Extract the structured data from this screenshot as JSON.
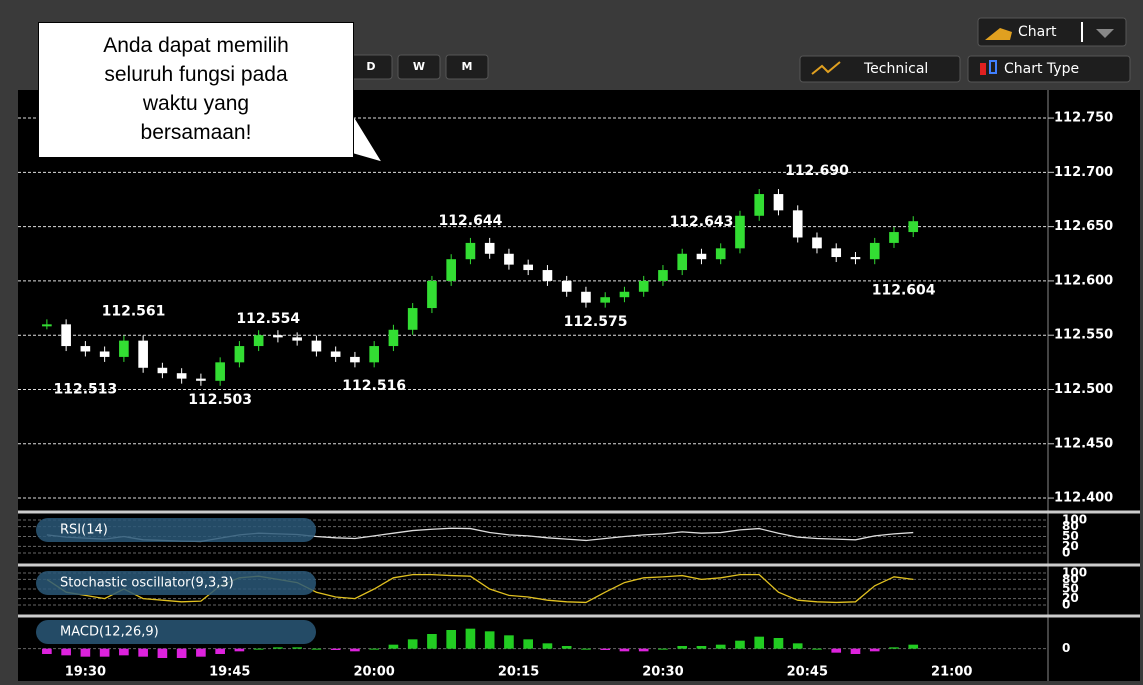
{
  "toolbar": {
    "periods": [
      "D",
      "W",
      "M"
    ],
    "chart_button": "Chart",
    "technical": "Technical",
    "chart_type": "Chart Type"
  },
  "callout": [
    "Anda dapat memilih",
    "seluruh fungsi pada",
    "waktu yang",
    "bersamaan!"
  ],
  "chart_data": {
    "type": "candlestick",
    "x": [
      "19:26",
      "19:28",
      "19:30",
      "19:32",
      "19:34",
      "19:36",
      "19:38",
      "19:40",
      "19:42",
      "19:44",
      "19:46",
      "19:48",
      "19:50",
      "19:52",
      "19:54",
      "19:56",
      "19:58",
      "20:00",
      "20:02",
      "20:04",
      "20:06",
      "20:08",
      "20:10",
      "20:12",
      "20:14",
      "20:16",
      "20:18",
      "20:20",
      "20:22",
      "20:24",
      "20:26",
      "20:28",
      "20:30",
      "20:32",
      "20:34",
      "20:36",
      "20:38",
      "20:40",
      "20:42",
      "20:44",
      "20:46",
      "20:48",
      "20:50",
      "20:52",
      "20:54",
      "20:56"
    ],
    "values": [
      112.56,
      112.54,
      112.535,
      112.53,
      112.545,
      112.52,
      112.515,
      112.51,
      112.508,
      112.525,
      112.54,
      112.55,
      112.548,
      112.545,
      112.535,
      112.53,
      112.525,
      112.54,
      112.555,
      112.575,
      112.6,
      112.62,
      112.635,
      112.625,
      112.615,
      112.61,
      112.6,
      112.59,
      112.58,
      112.585,
      112.59,
      112.6,
      112.61,
      112.625,
      112.62,
      112.63,
      112.66,
      112.68,
      112.665,
      112.64,
      112.63,
      112.622,
      112.62,
      112.635,
      112.645,
      112.655
    ],
    "xlim": [
      "19:23",
      "21:10"
    ],
    "xticks": [
      "19:30",
      "19:45",
      "20:00",
      "20:15",
      "20:30",
      "20:45",
      "21:00"
    ],
    "ylim": [
      112.389,
      112.774
    ],
    "yticks": [
      {
        "value": 112.75,
        "label": "112.750"
      },
      {
        "value": 112.7,
        "label": "112.700"
      },
      {
        "value": 112.65,
        "label": "112.650"
      },
      {
        "value": 112.6,
        "label": "112.600"
      },
      {
        "value": 112.55,
        "label": "112.550"
      },
      {
        "value": 112.5,
        "label": "112.500"
      },
      {
        "value": 112.45,
        "label": "112.450"
      },
      {
        "value": 112.4,
        "label": "112.400"
      }
    ],
    "annotations": [
      {
        "x": "19:35",
        "value": 112.561
      },
      {
        "x": "19:49",
        "value": 112.554
      },
      {
        "x": "19:30",
        "value": 112.513
      },
      {
        "x": "19:44",
        "value": 112.503
      },
      {
        "x": "20:00",
        "value": 112.516
      },
      {
        "x": "20:10",
        "value": 112.644
      },
      {
        "x": "20:34",
        "value": 112.643
      },
      {
        "x": "20:23",
        "value": 112.575
      },
      {
        "x": "20:46",
        "value": {
          "value": 112.69,
          "label": "112.690"
        }
      },
      {
        "x": "20:55",
        "value": 112.604
      }
    ],
    "grid": true,
    "up_color": "#33dd33",
    "down_color": "#ffffff"
  },
  "indicators": [
    {
      "name": "RSI(14)",
      "type": "line",
      "color": "#dddddd",
      "ylim": [
        0,
        100
      ],
      "yticks": [
        100,
        80,
        50,
        20,
        0
      ],
      "values": [
        55,
        48,
        45,
        42,
        50,
        40,
        38,
        36,
        35,
        45,
        55,
        60,
        58,
        56,
        50,
        46,
        44,
        52,
        60,
        68,
        72,
        75,
        74,
        62,
        55,
        52,
        46,
        42,
        38,
        44,
        50,
        55,
        58,
        64,
        60,
        62,
        70,
        74,
        60,
        48,
        44,
        42,
        40,
        52,
        58,
        62
      ]
    },
    {
      "name": "Stochastic oscillator(9,3,3)",
      "type": "line",
      "color": "#e0c020",
      "ylim": [
        0,
        100
      ],
      "yticks": [
        100,
        80,
        50,
        20,
        0
      ],
      "values": [
        80,
        40,
        30,
        20,
        50,
        20,
        15,
        10,
        12,
        60,
        85,
        90,
        80,
        70,
        40,
        25,
        20,
        50,
        85,
        95,
        95,
        92,
        90,
        50,
        30,
        25,
        15,
        10,
        8,
        40,
        70,
        85,
        88,
        92,
        80,
        85,
        95,
        95,
        40,
        15,
        10,
        8,
        10,
        60,
        88,
        80
      ]
    },
    {
      "name": "MACD(12,26,9)",
      "type": "histogram",
      "color": "#22cc22",
      "negative_color": "#dd22dd",
      "ylim": [
        -0.01,
        0.02
      ],
      "yticks": [
        0
      ],
      "values": [
        -0.004,
        -0.005,
        -0.006,
        -0.006,
        -0.005,
        -0.006,
        -0.007,
        -0.007,
        -0.006,
        -0.004,
        -0.002,
        0,
        0.001,
        0.001,
        0,
        -0.001,
        -0.002,
        0,
        0.003,
        0.007,
        0.011,
        0.014,
        0.015,
        0.013,
        0.01,
        0.007,
        0.004,
        0.002,
        0,
        -0.001,
        -0.002,
        -0.002,
        0,
        0.002,
        0.002,
        0.003,
        0.006,
        0.009,
        0.008,
        0.004,
        0,
        -0.003,
        -0.004,
        -0.002,
        0.001,
        0.003
      ]
    }
  ]
}
